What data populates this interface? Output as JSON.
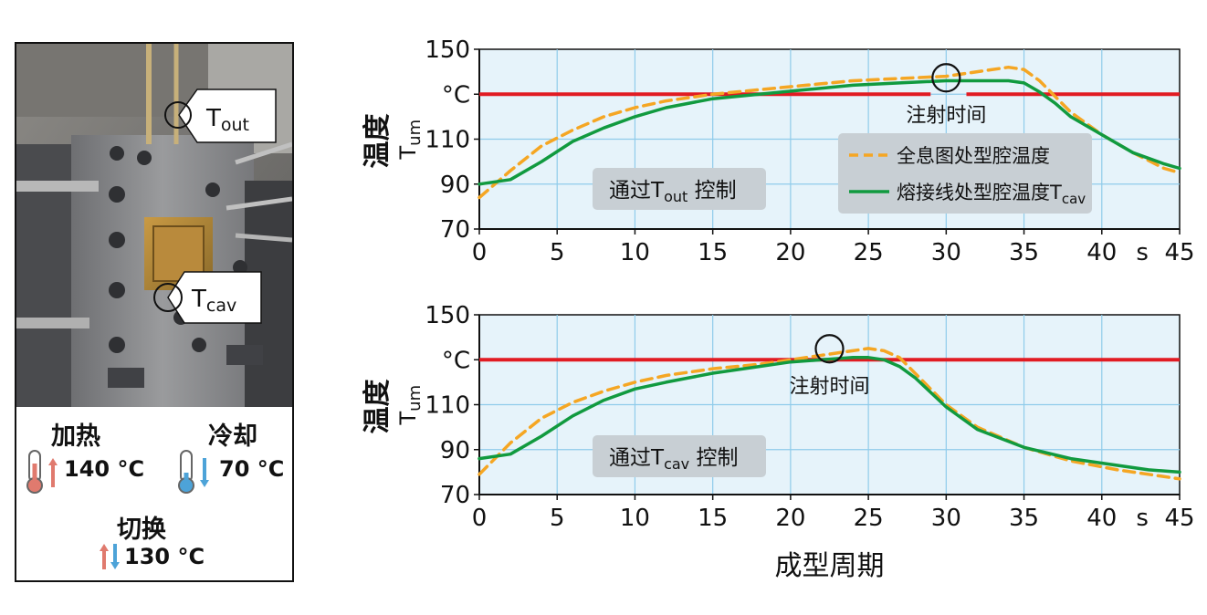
{
  "photo": {
    "tout_label": "T",
    "tout_sub": "out",
    "tcav_label": "T",
    "tcav_sub": "cav"
  },
  "modes": {
    "heat_label": "加热",
    "heat_temp": "140 °C",
    "cool_label": "冷却",
    "cool_temp": "70 °C",
    "switch_label": "切换",
    "switch_temp": "130 °C"
  },
  "chart_data": [
    {
      "type": "line",
      "ylabel_main": "温度",
      "ylabel_sub_T": "T",
      "ylabel_sub_um": "um",
      "y_unit": "°C",
      "x_unit": "s",
      "xlim": [
        0,
        45
      ],
      "ylim": [
        70,
        150
      ],
      "x_ticks": [
        0,
        5,
        10,
        15,
        20,
        25,
        30,
        35,
        40,
        45
      ],
      "y_ticks": [
        70,
        90,
        110,
        150
      ],
      "grid": true,
      "switch_line_y": 130,
      "control_label_prefix": "通过T",
      "control_label_sub": "out",
      "control_label_suffix": " 控制",
      "injection_label": "注射时间",
      "injection_x": 30,
      "legend": {
        "position": "right-middle",
        "entries": [
          {
            "name": "全息图处型腔温度",
            "color": "#f5a623",
            "dash": true
          },
          {
            "name": "熔接线处型腔温度T",
            "sub": "cav",
            "color": "#119a3f",
            "dash": false
          }
        ]
      },
      "series": [
        {
          "name": "全息图处型腔温度",
          "color": "#f5a623",
          "dashed": true,
          "x": [
            0,
            2,
            4,
            6,
            8,
            10,
            12,
            15,
            18,
            21,
            24,
            27,
            30,
            32,
            34,
            35,
            36,
            37,
            38,
            40,
            42,
            44,
            45
          ],
          "y": [
            84,
            96,
            107,
            114,
            120,
            124,
            127,
            130,
            132,
            134,
            136,
            137,
            138,
            140,
            142,
            141,
            136,
            129,
            122,
            112,
            104,
            97,
            95
          ]
        },
        {
          "name": "熔接线处型腔温度Tcav",
          "color": "#119a3f",
          "dashed": false,
          "x": [
            0,
            2,
            4,
            6,
            8,
            10,
            12,
            15,
            18,
            21,
            24,
            27,
            30,
            32,
            34,
            35,
            36,
            37,
            38,
            40,
            42,
            44,
            45
          ],
          "y": [
            90,
            92,
            100,
            109,
            115,
            120,
            124,
            128,
            130,
            132,
            134,
            135,
            136,
            136,
            136,
            135,
            131,
            126,
            120,
            112,
            104,
            99,
            97
          ]
        }
      ]
    },
    {
      "type": "line",
      "ylabel_main": "温度",
      "ylabel_sub_T": "T",
      "ylabel_sub_um": "um",
      "y_unit": "°C",
      "x_unit": "s",
      "xlabel": "成型周期",
      "xlim": [
        0,
        45
      ],
      "ylim": [
        70,
        150
      ],
      "x_ticks": [
        0,
        5,
        10,
        15,
        20,
        25,
        30,
        35,
        40,
        45
      ],
      "y_ticks": [
        70,
        90,
        110,
        150
      ],
      "grid": true,
      "switch_line_y": 130,
      "control_label_prefix": "通过T",
      "control_label_sub": "cav",
      "control_label_suffix": " 控制",
      "injection_label": "注射时间",
      "injection_x": 22.5,
      "series": [
        {
          "name": "全息图处型腔温度",
          "color": "#f5a623",
          "dashed": true,
          "x": [
            0,
            2,
            4,
            6,
            8,
            10,
            12,
            15,
            18,
            20,
            22,
            24,
            25,
            26,
            27,
            28,
            30,
            32,
            35,
            38,
            41,
            43,
            45
          ],
          "y": [
            79,
            93,
            104,
            111,
            116,
            120,
            123,
            126,
            128,
            130,
            132,
            134,
            135,
            134,
            131,
            124,
            110,
            100,
            91,
            85,
            81,
            79,
            77
          ]
        },
        {
          "name": "熔接线处型腔温度Tcav",
          "color": "#119a3f",
          "dashed": false,
          "x": [
            0,
            2,
            4,
            6,
            8,
            10,
            12,
            15,
            18,
            20,
            22,
            24,
            25,
            26,
            27,
            28,
            30,
            32,
            35,
            38,
            41,
            43,
            45
          ],
          "y": [
            86,
            88,
            96,
            105,
            112,
            117,
            120,
            124,
            127,
            129,
            130,
            131,
            131,
            130,
            127,
            122,
            109,
            99,
            91,
            86,
            83,
            81,
            80
          ]
        }
      ]
    }
  ]
}
